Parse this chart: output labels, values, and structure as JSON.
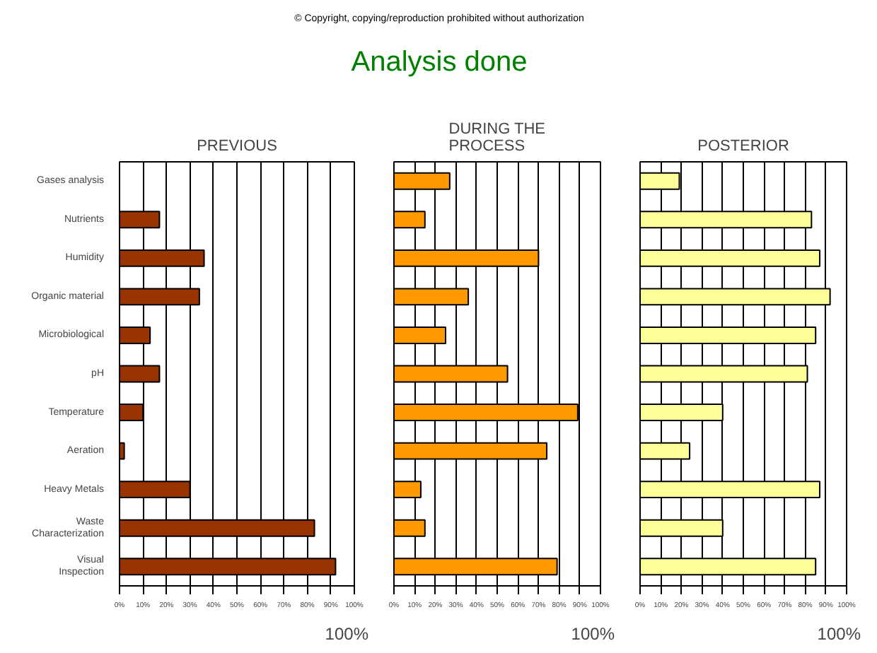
{
  "chart_data": [
    {
      "type": "other",
      "title": "Analysis done",
      "annotations": [
        "© Copyright, copying/reproduction prohibited without authorization"
      ]
    },
    {
      "type": "bar",
      "orientation": "horizontal",
      "title": "PREVIOUS",
      "categories": [
        "Gases analysis",
        "Nutrients",
        "Humidity",
        "Organic material",
        "Microbiological",
        "pH",
        "Temperature",
        "Aeration",
        "Heavy Metals",
        "Waste Characterization",
        "Visual Inspection"
      ],
      "series": [
        {
          "color": "#993300",
          "values": [
            0,
            17,
            36,
            34,
            13,
            17,
            10,
            2,
            30,
            83,
            92
          ]
        }
      ],
      "xlim": [
        0,
        100
      ],
      "xticks": [
        {
          "value": 0,
          "label": "0%"
        },
        {
          "value": 10,
          "label": "10%"
        },
        {
          "value": 20,
          "label": "20%"
        },
        {
          "value": 30,
          "label": "30%"
        },
        {
          "value": 40,
          "label": "40%"
        },
        {
          "value": 50,
          "label": "50%"
        },
        {
          "value": 60,
          "label": "60%"
        },
        {
          "value": 70,
          "label": "70%"
        },
        {
          "value": 80,
          "label": "80%"
        },
        {
          "value": 90,
          "label": "90%"
        },
        {
          "value": 100,
          "label": "100%"
        }
      ],
      "grid": "x",
      "annotations": [
        "100%"
      ]
    },
    {
      "type": "bar",
      "orientation": "horizontal",
      "title": "DURING THE PROCESS",
      "categories": [
        null,
        null,
        null,
        null,
        null,
        null,
        null,
        null,
        null,
        null,
        null
      ],
      "series": [
        {
          "color": "#ff9900",
          "values": [
            27,
            15,
            70,
            36,
            25,
            55,
            89,
            74,
            13,
            15,
            79
          ]
        }
      ],
      "xlim": [
        0,
        100
      ],
      "xticks": [
        {
          "value": 0,
          "label": "0%"
        },
        {
          "value": 10,
          "label": "10%"
        },
        {
          "value": 20,
          "label": "20%"
        },
        {
          "value": 30,
          "label": "30%"
        },
        {
          "value": 40,
          "label": "40%"
        },
        {
          "value": 50,
          "label": "50%"
        },
        {
          "value": 60,
          "label": "60%"
        },
        {
          "value": 70,
          "label": "70%"
        },
        {
          "value": 80,
          "label": "80%"
        },
        {
          "value": 90,
          "label": "90%"
        },
        {
          "value": 100,
          "label": "100%"
        }
      ],
      "grid": "x",
      "tick_labels": "x",
      "annotations": [
        "100%"
      ]
    },
    {
      "type": "bar",
      "orientation": "horizontal",
      "title": "POSTERIOR",
      "categories": [
        null,
        null,
        null,
        null,
        null,
        null,
        null,
        null,
        null,
        null,
        null
      ],
      "series": [
        {
          "color": "#ffff99",
          "values": [
            19,
            83,
            87,
            92,
            85,
            81,
            40,
            24,
            87,
            40,
            85
          ]
        }
      ],
      "xlim": [
        0,
        100
      ],
      "xticks": [
        {
          "value": 0,
          "label": "0%"
        },
        {
          "value": 10,
          "label": "10%"
        },
        {
          "value": 20,
          "label": "20%"
        },
        {
          "value": 30,
          "label": "30%"
        },
        {
          "value": 40,
          "label": "40%"
        },
        {
          "value": 50,
          "label": "50%"
        },
        {
          "value": 60,
          "label": "60%"
        },
        {
          "value": 70,
          "label": "70%"
        },
        {
          "value": 80,
          "label": "80%"
        },
        {
          "value": 90,
          "label": "90%"
        },
        {
          "value": 100,
          "label": "100%"
        }
      ],
      "grid": "x",
      "tick_labels": "x",
      "annotations": [
        "100%"
      ]
    }
  ]
}
